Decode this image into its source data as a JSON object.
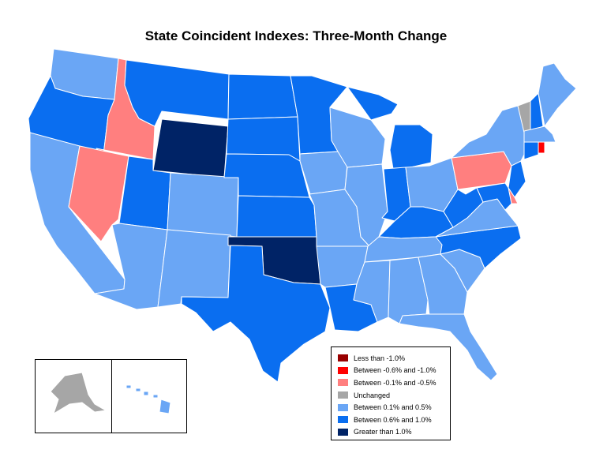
{
  "title": "State Coincident Indexes: Three-Month Change",
  "colors": {
    "lt_neg1": "#990000",
    "neg06_neg1": "#ff0000",
    "neg01_neg05": "#ff7f7f",
    "unchanged": "#a6a6a6",
    "p01_p05": "#6aa6f5",
    "p06_p10": "#0a6ef0",
    "gt1": "#002366",
    "border": "#ffffff"
  },
  "legend": {
    "items": [
      {
        "label": "Less than -1.0%",
        "color": "#990000"
      },
      {
        "label": "Between -0.6% and -1.0%",
        "color": "#ff0000"
      },
      {
        "label": "Between -0.1% and -0.5%",
        "color": "#ff7f7f"
      },
      {
        "label": "Unchanged",
        "color": "#a6a6a6"
      },
      {
        "label": "Between 0.1% and 0.5%",
        "color": "#6aa6f5"
      },
      {
        "label": "Between 0.6% and 1.0%",
        "color": "#0a6ef0"
      },
      {
        "label": "Greater than 1.0%",
        "color": "#002366"
      }
    ]
  },
  "states": {
    "WA": "Between 0.1% and 0.5%",
    "OR": "Between 0.6% and 1.0%",
    "CA": "Between 0.1% and 0.5%",
    "ID": "Between -0.1% and -0.5%",
    "NV": "Between -0.1% and -0.5%",
    "MT": "Between 0.6% and 1.0%",
    "WY": "Greater than 1.0%",
    "UT": "Between 0.6% and 1.0%",
    "AZ": "Between 0.1% and 0.5%",
    "CO": "Between 0.1% and 0.5%",
    "NM": "Between 0.1% and 0.5%",
    "ND": "Between 0.6% and 1.0%",
    "SD": "Between 0.6% and 1.0%",
    "NE": "Between 0.6% and 1.0%",
    "KS": "Between 0.6% and 1.0%",
    "OK": "Greater than 1.0%",
    "TX": "Between 0.6% and 1.0%",
    "MN": "Between 0.6% and 1.0%",
    "IA": "Between 0.1% and 0.5%",
    "MO": "Between 0.1% and 0.5%",
    "AR": "Between 0.1% and 0.5%",
    "LA": "Between 0.6% and 1.0%",
    "WI": "Between 0.1% and 0.5%",
    "IL": "Between 0.1% and 0.5%",
    "MI": "Between 0.6% and 1.0%",
    "IN": "Between 0.6% and 1.0%",
    "OH": "Between 0.1% and 0.5%",
    "KY": "Between 0.6% and 1.0%",
    "TN": "Between 0.1% and 0.5%",
    "MS": "Between 0.1% and 0.5%",
    "AL": "Between 0.1% and 0.5%",
    "GA": "Between 0.1% and 0.5%",
    "FL": "Between 0.1% and 0.5%",
    "SC": "Between 0.1% and 0.5%",
    "NC": "Between 0.6% and 1.0%",
    "VA": "Between 0.1% and 0.5%",
    "WV": "Between 0.6% and 1.0%",
    "PA": "Between -0.1% and -0.5%",
    "NY": "Between 0.1% and 0.5%",
    "VT": "Unchanged",
    "NH": "Between 0.6% and 1.0%",
    "ME": "Between 0.1% and 0.5%",
    "MA": "Between 0.1% and 0.5%",
    "RI": "Between -0.6% and -1.0%",
    "CT": "Between 0.6% and 1.0%",
    "NJ": "Between 0.6% and 1.0%",
    "DE": "Between -0.1% and -0.5%",
    "MD": "Between 0.6% and 1.0%",
    "AK": "Unchanged",
    "HI": "Between 0.1% and 0.5%"
  }
}
